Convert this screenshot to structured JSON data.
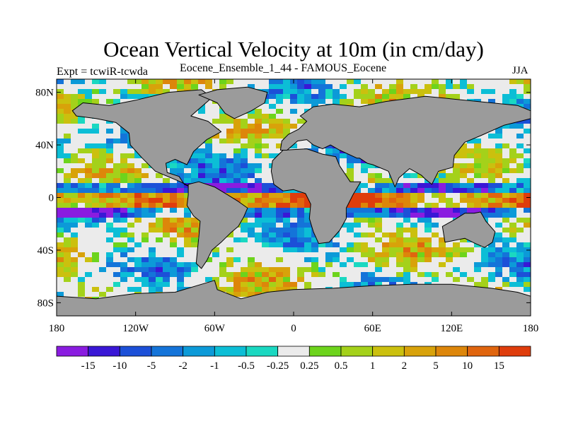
{
  "title": "Ocean Vertical Velocity at 10m (in cm/day)",
  "experiment": "Expt = tcwiR-tcwda",
  "subtitle": "Eocene_Ensemble_1_44 - FAMOUS_Eocene",
  "season": "JJA",
  "map": {
    "projection": "cylindrical equidistant",
    "lon_range": [
      -180,
      180
    ],
    "lat_range": [
      -90,
      90
    ],
    "land_color": "#9b9b9b",
    "y_ticks": [
      {
        "lat": 80,
        "label": "80N"
      },
      {
        "lat": 40,
        "label": "40N"
      },
      {
        "lat": 0,
        "label": "0"
      },
      {
        "lat": -40,
        "label": "40S"
      },
      {
        "lat": -80,
        "label": "80S"
      }
    ],
    "x_ticks": [
      {
        "lon": -180,
        "label": "180"
      },
      {
        "lon": -120,
        "label": "120W"
      },
      {
        "lon": -60,
        "label": "60W"
      },
      {
        "lon": 0,
        "label": "0"
      },
      {
        "lon": 60,
        "label": "60E"
      },
      {
        "lon": 120,
        "label": "120E"
      },
      {
        "lon": 180,
        "label": "180"
      }
    ]
  },
  "colorbar": {
    "colors": [
      "#8a1ce0",
      "#3a17d6",
      "#1c50d8",
      "#1474d9",
      "#0c9ad8",
      "#0cbed6",
      "#1ad8c1",
      "#ebebeb",
      "#6dd41c",
      "#a4d11a",
      "#cbc00e",
      "#d8a20a",
      "#dd860a",
      "#e0650e",
      "#df3d0c"
    ],
    "labels": [
      "-15",
      "-10",
      "-5",
      "-2",
      "-1",
      "-0.5",
      "-0.25",
      "0.25",
      "0.5",
      "1",
      "2",
      "5",
      "10",
      "15"
    ]
  }
}
